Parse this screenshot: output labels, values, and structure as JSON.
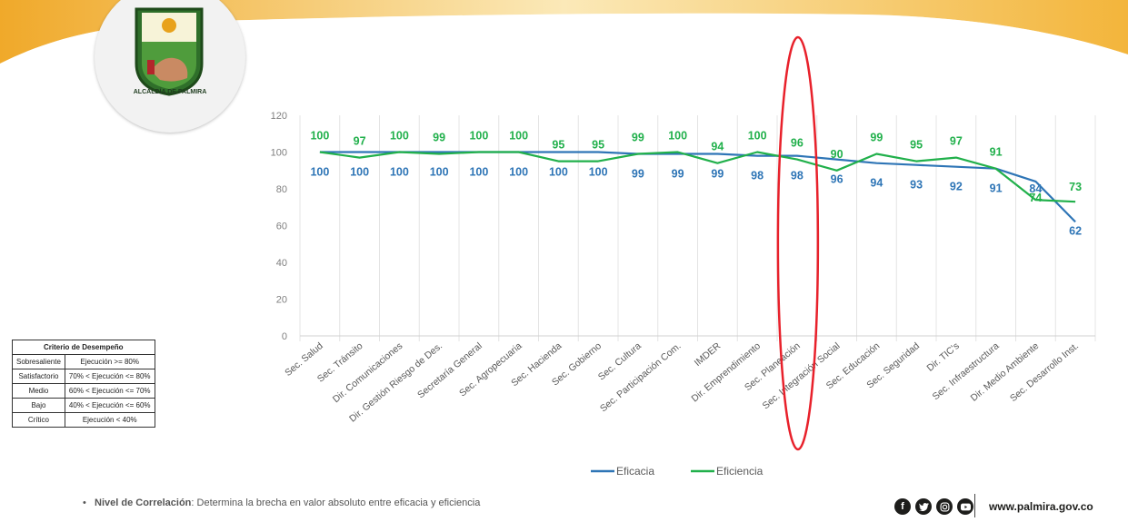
{
  "header": {
    "seal_text": "ALCALDÍA DE PALMIRA"
  },
  "chart_data": {
    "type": "line",
    "categories": [
      "Sec. Salud",
      "Sec. Tránsito",
      "Dir. Comunicaciones",
      "Dir. Gestión Riesgo de Des.",
      "Secretaría General",
      "Sec. Agropecuaria",
      "Sec. Hacienda",
      "Sec. Gobierno",
      "Sec. Cultura",
      "Sec. Participación Com.",
      "IMDER",
      "Dir. Emprendimiento",
      "Sec. Planeación",
      "Sec. Integración Social",
      "Sec. Educación",
      "Sec. Seguridad",
      "Dir. TIC's",
      "Sec. Infraestructura",
      "Dir. Medio Ambiente",
      "Sec. Desarrollo Inst."
    ],
    "series": [
      {
        "name": "Eficacia",
        "color": "#2e75b6",
        "values": [
          100,
          100,
          100,
          100,
          100,
          100,
          100,
          100,
          99,
          99,
          99,
          98,
          98,
          96,
          94,
          93,
          92,
          91,
          84,
          62
        ]
      },
      {
        "name": "Eficiencia",
        "color": "#21b04b",
        "values": [
          100,
          97,
          100,
          99,
          100,
          100,
          95,
          95,
          99,
          100,
          94,
          100,
          96,
          90,
          99,
          95,
          97,
          91,
          74,
          73
        ]
      }
    ],
    "yticks": [
      0,
      20,
      40,
      60,
      80,
      100,
      120
    ],
    "ylim": [
      0,
      120
    ],
    "legend_position": "bottom",
    "highlight_category": "Sec. Planeación",
    "highlight_color": "#e8212b"
  },
  "criteria_table": {
    "title": "Criterio de Desempeño",
    "rows": [
      {
        "level": "Sobresaliente",
        "rule": "Ejecución >= 80%"
      },
      {
        "level": "Satisfactorio",
        "rule": "70% < Ejecución <= 80%"
      },
      {
        "level": "Medio",
        "rule": "60% < Ejecución <= 70%"
      },
      {
        "level": "Bajo",
        "rule": "40% < Ejecución <= 60%"
      },
      {
        "level": "Crítico",
        "rule": "Ejecución < 40%"
      }
    ]
  },
  "note": {
    "bullet": "•",
    "label": "Nivel de Correlación",
    "text": ": Determina la brecha en valor absoluto entre eficacia y eficiencia"
  },
  "footer": {
    "social_icons": [
      "facebook-icon",
      "twitter-icon",
      "instagram-icon",
      "youtube-icon"
    ],
    "website": "www.palmira.gov.co"
  }
}
